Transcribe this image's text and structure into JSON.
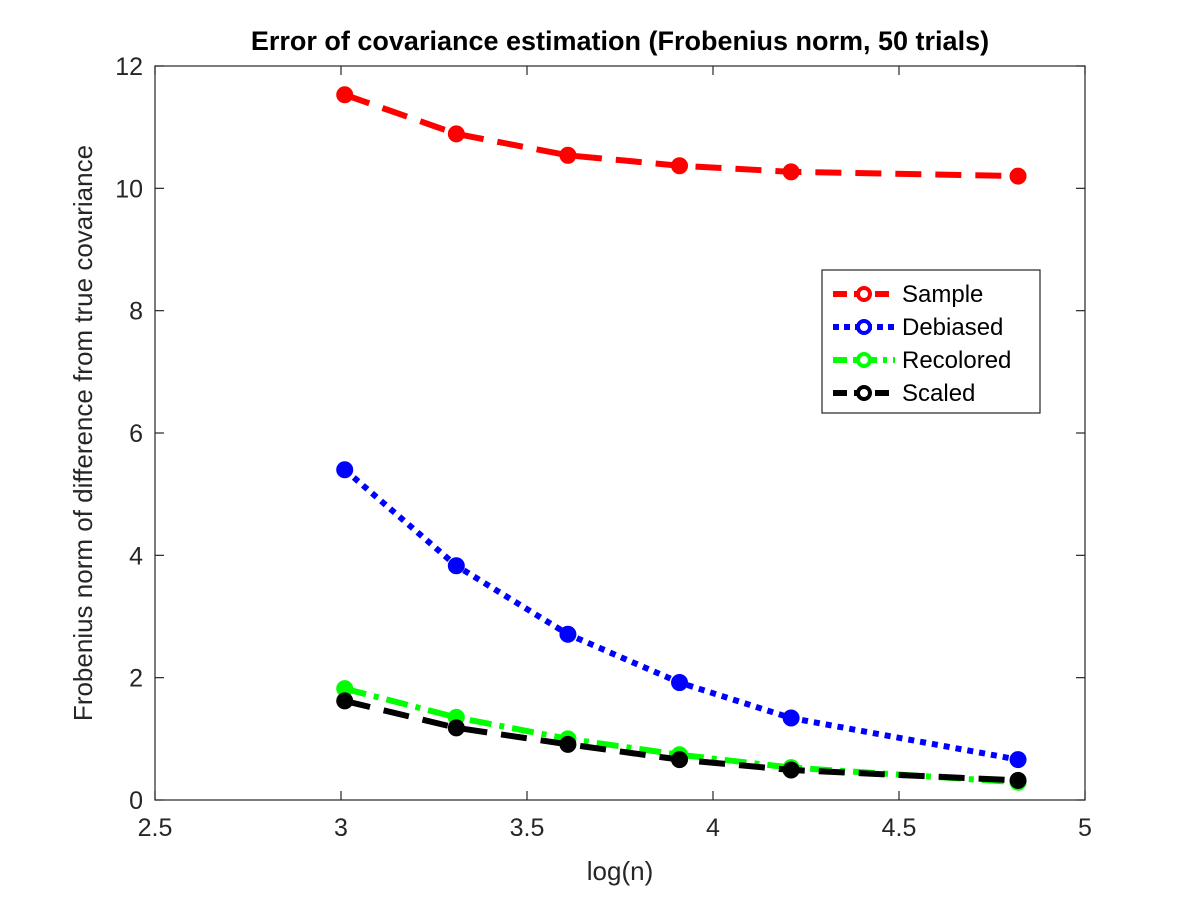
{
  "chart_data": {
    "type": "line",
    "title": "Error of covariance estimation (Frobenius norm, 50 trials)",
    "xlabel": "log(n)",
    "ylabel": "Frobenius norm of difference from true covariance",
    "xlim": [
      2.5,
      5
    ],
    "ylim": [
      0,
      12
    ],
    "xticks": [
      2.5,
      3,
      3.5,
      4,
      4.5,
      5
    ],
    "xtick_labels": [
      "2.5",
      "3",
      "3.5",
      "4",
      "4.5",
      "5"
    ],
    "yticks": [
      0,
      2,
      4,
      6,
      8,
      10,
      12
    ],
    "ytick_labels": [
      "0",
      "2",
      "4",
      "6",
      "8",
      "10",
      "12"
    ],
    "grid": false,
    "legend_position": "upper-right",
    "x": [
      3.01,
      3.31,
      3.61,
      3.91,
      4.21,
      4.82
    ],
    "series": [
      {
        "name": "Sample",
        "color": "#ff0000",
        "dash": "dashed",
        "values": [
          11.53,
          10.89,
          10.54,
          10.37,
          10.27,
          10.2
        ]
      },
      {
        "name": "Debiased",
        "color": "#0000ff",
        "dash": "dotted",
        "values": [
          5.4,
          3.83,
          2.71,
          1.92,
          1.34,
          0.66
        ]
      },
      {
        "name": "Recolored",
        "color": "#00ff00",
        "dash": "dashdot",
        "values": [
          1.82,
          1.35,
          1.0,
          0.74,
          0.53,
          0.29
        ]
      },
      {
        "name": "Scaled",
        "color": "#000000",
        "dash": "dashed",
        "values": [
          1.62,
          1.18,
          0.91,
          0.66,
          0.49,
          0.32
        ]
      }
    ]
  }
}
